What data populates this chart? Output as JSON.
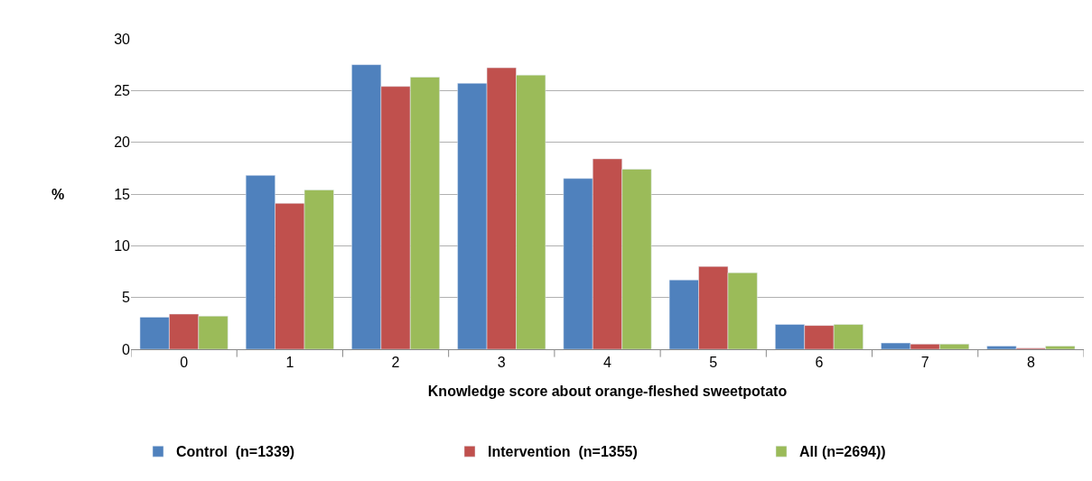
{
  "chart_data": {
    "type": "bar",
    "xlabel": "Knowledge score about orange-fleshed sweetpotato",
    "ylabel": "%",
    "categories": [
      "0",
      "1",
      "2",
      "3",
      "4",
      "5",
      "6",
      "7",
      "8"
    ],
    "series": [
      {
        "name": "Control  (n=1339)",
        "color": "#4f81bd",
        "values": [
          3.1,
          16.8,
          27.5,
          25.7,
          16.5,
          6.7,
          2.4,
          0.6,
          0.3
        ]
      },
      {
        "name": "Intervention  (n=1355)",
        "color": "#c0504d",
        "values": [
          3.4,
          14.1,
          25.4,
          27.2,
          18.4,
          8.0,
          2.3,
          0.5,
          0.1
        ]
      },
      {
        "name": "All (n=2694))",
        "color": "#9bbb59",
        "values": [
          3.2,
          15.4,
          26.3,
          26.5,
          17.4,
          7.4,
          2.4,
          0.5,
          0.3
        ]
      }
    ],
    "ylim": [
      0,
      30
    ],
    "yticks": [
      0,
      5,
      10,
      15,
      20,
      25,
      30
    ],
    "grid": "y",
    "legend": "bottom"
  }
}
